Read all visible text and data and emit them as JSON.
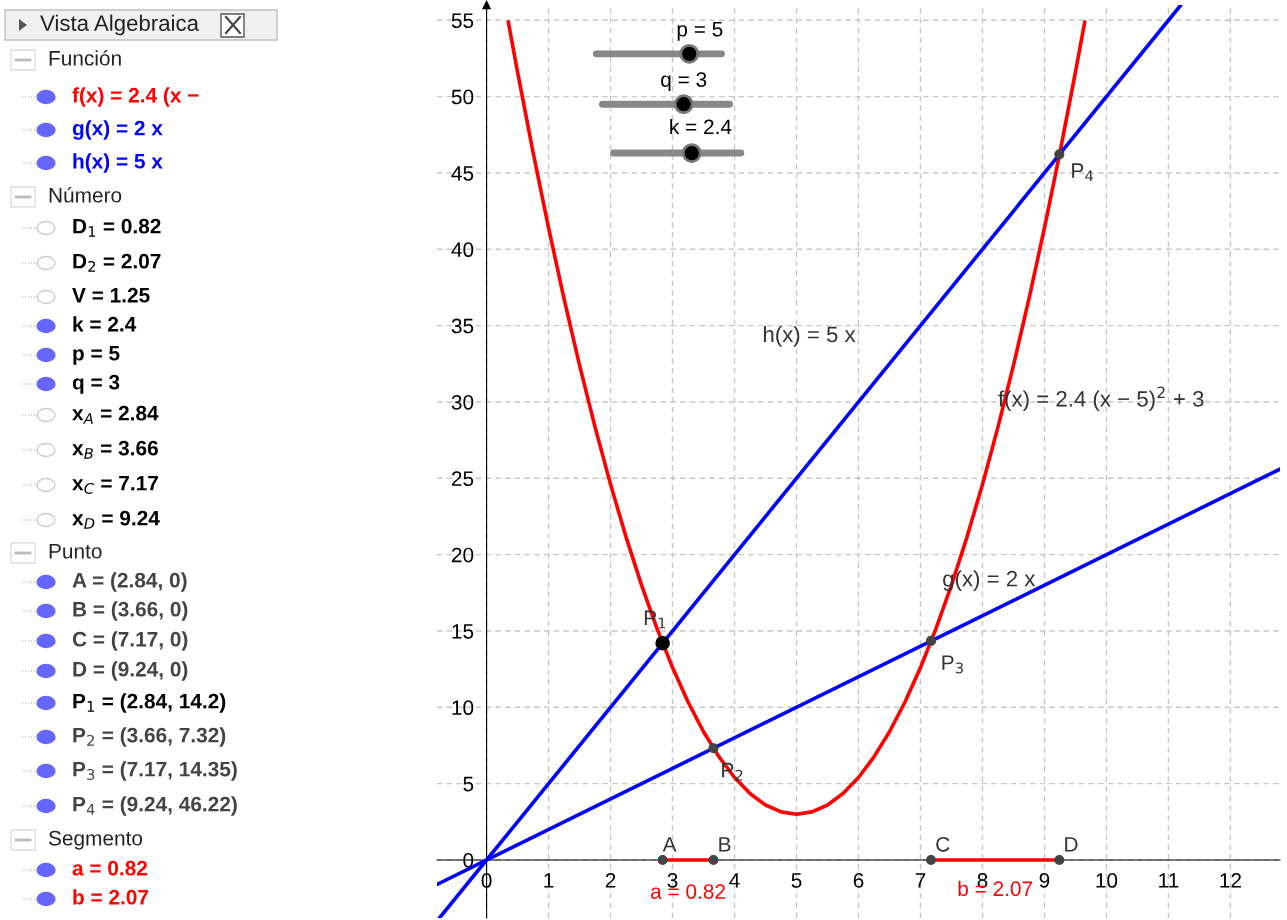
{
  "chart_data": {
    "type": "line",
    "xlim": [
      -0.8,
      12.8
    ],
    "ylim": [
      -3.8,
      56
    ],
    "xticks": [
      0,
      1,
      2,
      3,
      4,
      5,
      6,
      7,
      8,
      9,
      10,
      11,
      12
    ],
    "yticks": [
      0,
      5,
      10,
      15,
      20,
      25,
      30,
      35,
      40,
      45,
      50,
      55
    ],
    "grid": true,
    "legend": false,
    "series": [
      {
        "color": "#ff0000",
        "x": [
          0.35,
          0.5,
          0.75,
          1,
          1.25,
          1.5,
          1.75,
          2,
          2.25,
          2.5,
          2.75,
          3,
          3.25,
          3.5,
          3.75,
          4,
          4.25,
          4.5,
          4.75,
          5,
          5.25,
          5.5,
          5.75,
          6,
          6.25,
          6.5,
          6.75,
          7,
          7.25,
          7.5,
          7.75,
          8,
          8.25,
          8.5,
          8.75,
          9,
          9.25,
          9.5,
          9.65
        ],
        "values": [
          54.89,
          51.6,
          46.35,
          41.4,
          36.75,
          32.4,
          28.35,
          24.6,
          21.15,
          18,
          15.15,
          12.6,
          10.35,
          8.4,
          6.75,
          5.4,
          4.35,
          3.6,
          3.15,
          3,
          3.15,
          3.6,
          4.35,
          5.4,
          6.75,
          8.4,
          10.35,
          12.6,
          15.15,
          18,
          21.15,
          24.6,
          28.35,
          32.4,
          36.75,
          41.4,
          46.35,
          51.6,
          54.89
        ]
      },
      {
        "color": "#0000ff",
        "x": [
          -0.8,
          12.8
        ],
        "values": [
          -1.6,
          25.6
        ]
      },
      {
        "color": "#0000ff",
        "x": [
          -0.76,
          11.2
        ],
        "values": [
          -3.8,
          56
        ]
      },
      {
        "color": "#ff0000",
        "x": [
          2.84,
          3.66
        ],
        "values": [
          0,
          0
        ]
      },
      {
        "color": "#ff0000",
        "x": [
          7.17,
          9.24
        ],
        "values": [
          0,
          0
        ]
      },
      {
        "type": "scatter",
        "color": "#444444",
        "marker": "circle",
        "x": [
          2.84,
          3.66,
          7.17,
          9.24,
          3.66,
          7.17,
          9.24
        ],
        "values": [
          0,
          0,
          0,
          0,
          7.32,
          14.35,
          46.22
        ]
      },
      {
        "type": "scatter",
        "color": "#000000",
        "marker": "circle",
        "x": [
          2.84
        ],
        "values": [
          14.2
        ]
      }
    ],
    "annotations": [
      "Vista Algebraica",
      "Función",
      "f(x) = 2.4 (x −",
      "g(x) = 2 x",
      "h(x) = 5 x",
      "Número",
      "D$_{1}$ = 0.82",
      "D$_{2}$ = 2.07",
      "V = 1.25",
      "k = 2.4",
      "p = 5",
      "q = 3",
      "x$_{A}$ = 2.84",
      "x$_{B}$ = 3.66",
      "x$_{C}$ = 7.17",
      "x$_{D}$ = 9.24",
      "Punto",
      "A = (2.84, 0)",
      "B = (3.66, 0)",
      "C = (7.17, 0)",
      "D = (9.24, 0)",
      "P$_{1}$ = (2.84, 14.2)",
      "P$_{2}$ = (3.66, 7.32)",
      "P$_{3}$ = (7.17, 14.35)",
      "P$_{4}$ = (9.24, 46.22)",
      "Segmento",
      "a = 0.82",
      "b = 2.07",
      "p = 5",
      "q = 3",
      "k = 2.4",
      "h(x) = 5 x",
      "f(x) = 2.4 (x − 5)$^{2}$ + 3",
      "g(x) = 2 x",
      {
        "text": "P$_{1}$",
        "x": 2.84,
        "y": 14.2
      },
      {
        "text": "P$_{2}$",
        "x": 3.66,
        "y": 7.32
      },
      {
        "text": "P$_{3}$",
        "x": 7.17,
        "y": 14.35
      },
      {
        "text": "P$_{4}$",
        "x": 9.24,
        "y": 46.22
      },
      {
        "text": "A",
        "x": 2.84,
        "y": 0
      },
      {
        "text": "B",
        "x": 3.66,
        "y": 0
      },
      {
        "text": "C",
        "x": 7.17,
        "y": 0
      },
      {
        "text": "D",
        "x": 9.24,
        "y": 0
      },
      {
        "text": "a = 0.82",
        "x": 3.25,
        "y": 0
      },
      {
        "text": "b = 2.07",
        "x": 8.205,
        "y": 0
      }
    ]
  }
}
